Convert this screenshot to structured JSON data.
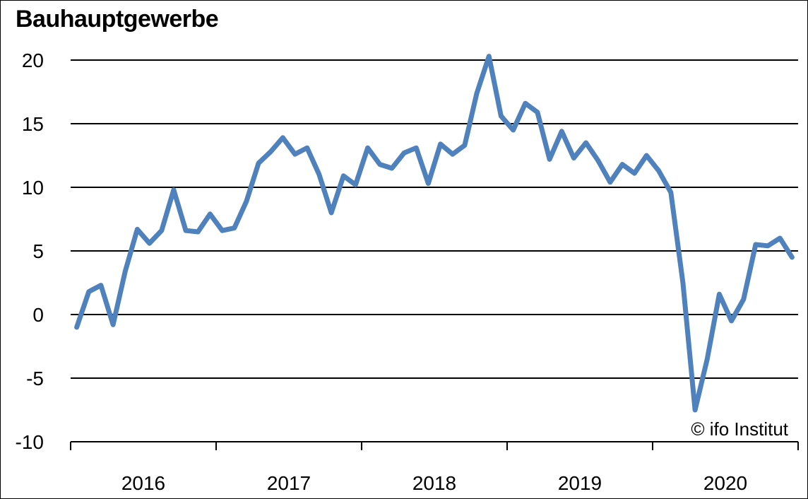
{
  "chart_data": {
    "type": "line",
    "title": "Bauhauptgewerbe",
    "xlabel": "",
    "ylabel": "",
    "ylim": [
      -10,
      20
    ],
    "yticks": [
      20,
      15,
      10,
      5,
      0,
      -5,
      -10
    ],
    "x_tick_labels": [
      "2016",
      "2017",
      "2018",
      "2019",
      "2020"
    ],
    "x_start": "2016-01",
    "x_end": "2020-12",
    "grid": true,
    "series": [
      {
        "name": "",
        "color": "#4F81BD",
        "x": [
          "2016-01",
          "2016-02",
          "2016-03",
          "2016-04",
          "2016-05",
          "2016-06",
          "2016-07",
          "2016-08",
          "2016-09",
          "2016-10",
          "2016-11",
          "2016-12",
          "2017-01",
          "2017-02",
          "2017-03",
          "2017-04",
          "2017-05",
          "2017-06",
          "2017-07",
          "2017-08",
          "2017-09",
          "2017-10",
          "2017-11",
          "2017-12",
          "2018-01",
          "2018-02",
          "2018-03",
          "2018-04",
          "2018-05",
          "2018-06",
          "2018-07",
          "2018-08",
          "2018-09",
          "2018-10",
          "2018-11",
          "2018-12",
          "2019-01",
          "2019-02",
          "2019-03",
          "2019-04",
          "2019-05",
          "2019-06",
          "2019-07",
          "2019-08",
          "2019-09",
          "2019-10",
          "2019-11",
          "2019-12",
          "2020-01",
          "2020-02",
          "2020-03",
          "2020-04",
          "2020-05",
          "2020-06",
          "2020-07",
          "2020-08",
          "2020-09",
          "2020-10",
          "2020-11",
          "2020-12"
        ],
        "values": [
          -1.0,
          1.8,
          2.3,
          -0.8,
          3.4,
          6.7,
          5.6,
          6.6,
          9.8,
          6.6,
          6.5,
          7.9,
          6.6,
          6.8,
          8.9,
          11.9,
          12.8,
          13.9,
          12.6,
          13.1,
          11.0,
          8.0,
          10.9,
          10.2,
          13.1,
          11.8,
          11.5,
          12.7,
          13.1,
          10.3,
          13.4,
          12.6,
          13.3,
          17.4,
          20.3,
          15.6,
          14.5,
          16.6,
          15.9,
          12.2,
          14.4,
          12.3,
          13.5,
          12.1,
          10.4,
          11.8,
          11.1,
          12.5,
          11.3,
          9.6,
          2.5,
          -7.5,
          -3.5,
          1.6,
          -0.5,
          1.2,
          5.5,
          5.4,
          6.0,
          4.5
        ]
      }
    ],
    "annotation": "© ifo Institut"
  }
}
